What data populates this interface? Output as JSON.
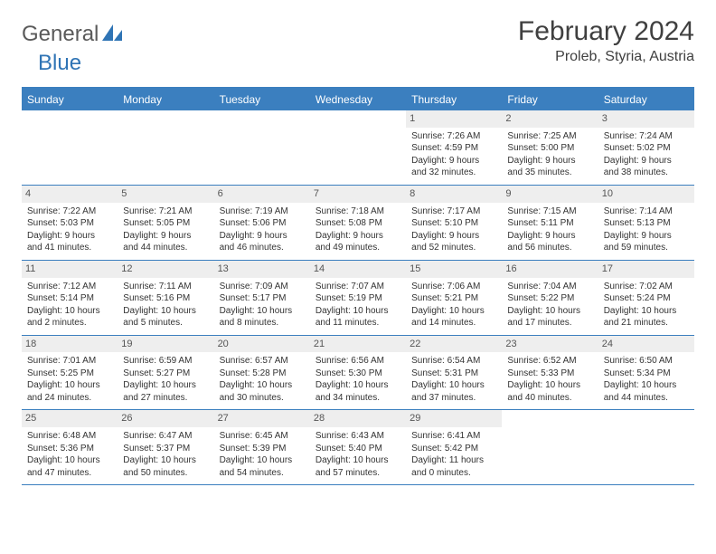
{
  "brand": {
    "part1": "General",
    "part2": "Blue"
  },
  "title": "February 2024",
  "subtitle": "Proleb, Styria, Austria",
  "colors": {
    "header_bg": "#3b7fbf",
    "header_text": "#ffffff",
    "daynum_bg": "#eeeeee",
    "body_text": "#333333",
    "logo_blue": "#2f74b5"
  },
  "weekdays": [
    "Sunday",
    "Monday",
    "Tuesday",
    "Wednesday",
    "Thursday",
    "Friday",
    "Saturday"
  ],
  "weeks": [
    [
      null,
      null,
      null,
      null,
      {
        "n": "1",
        "sr": "Sunrise: 7:26 AM",
        "ss": "Sunset: 4:59 PM",
        "d1": "Daylight: 9 hours",
        "d2": "and 32 minutes."
      },
      {
        "n": "2",
        "sr": "Sunrise: 7:25 AM",
        "ss": "Sunset: 5:00 PM",
        "d1": "Daylight: 9 hours",
        "d2": "and 35 minutes."
      },
      {
        "n": "3",
        "sr": "Sunrise: 7:24 AM",
        "ss": "Sunset: 5:02 PM",
        "d1": "Daylight: 9 hours",
        "d2": "and 38 minutes."
      }
    ],
    [
      {
        "n": "4",
        "sr": "Sunrise: 7:22 AM",
        "ss": "Sunset: 5:03 PM",
        "d1": "Daylight: 9 hours",
        "d2": "and 41 minutes."
      },
      {
        "n": "5",
        "sr": "Sunrise: 7:21 AM",
        "ss": "Sunset: 5:05 PM",
        "d1": "Daylight: 9 hours",
        "d2": "and 44 minutes."
      },
      {
        "n": "6",
        "sr": "Sunrise: 7:19 AM",
        "ss": "Sunset: 5:06 PM",
        "d1": "Daylight: 9 hours",
        "d2": "and 46 minutes."
      },
      {
        "n": "7",
        "sr": "Sunrise: 7:18 AM",
        "ss": "Sunset: 5:08 PM",
        "d1": "Daylight: 9 hours",
        "d2": "and 49 minutes."
      },
      {
        "n": "8",
        "sr": "Sunrise: 7:17 AM",
        "ss": "Sunset: 5:10 PM",
        "d1": "Daylight: 9 hours",
        "d2": "and 52 minutes."
      },
      {
        "n": "9",
        "sr": "Sunrise: 7:15 AM",
        "ss": "Sunset: 5:11 PM",
        "d1": "Daylight: 9 hours",
        "d2": "and 56 minutes."
      },
      {
        "n": "10",
        "sr": "Sunrise: 7:14 AM",
        "ss": "Sunset: 5:13 PM",
        "d1": "Daylight: 9 hours",
        "d2": "and 59 minutes."
      }
    ],
    [
      {
        "n": "11",
        "sr": "Sunrise: 7:12 AM",
        "ss": "Sunset: 5:14 PM",
        "d1": "Daylight: 10 hours",
        "d2": "and 2 minutes."
      },
      {
        "n": "12",
        "sr": "Sunrise: 7:11 AM",
        "ss": "Sunset: 5:16 PM",
        "d1": "Daylight: 10 hours",
        "d2": "and 5 minutes."
      },
      {
        "n": "13",
        "sr": "Sunrise: 7:09 AM",
        "ss": "Sunset: 5:17 PM",
        "d1": "Daylight: 10 hours",
        "d2": "and 8 minutes."
      },
      {
        "n": "14",
        "sr": "Sunrise: 7:07 AM",
        "ss": "Sunset: 5:19 PM",
        "d1": "Daylight: 10 hours",
        "d2": "and 11 minutes."
      },
      {
        "n": "15",
        "sr": "Sunrise: 7:06 AM",
        "ss": "Sunset: 5:21 PM",
        "d1": "Daylight: 10 hours",
        "d2": "and 14 minutes."
      },
      {
        "n": "16",
        "sr": "Sunrise: 7:04 AM",
        "ss": "Sunset: 5:22 PM",
        "d1": "Daylight: 10 hours",
        "d2": "and 17 minutes."
      },
      {
        "n": "17",
        "sr": "Sunrise: 7:02 AM",
        "ss": "Sunset: 5:24 PM",
        "d1": "Daylight: 10 hours",
        "d2": "and 21 minutes."
      }
    ],
    [
      {
        "n": "18",
        "sr": "Sunrise: 7:01 AM",
        "ss": "Sunset: 5:25 PM",
        "d1": "Daylight: 10 hours",
        "d2": "and 24 minutes."
      },
      {
        "n": "19",
        "sr": "Sunrise: 6:59 AM",
        "ss": "Sunset: 5:27 PM",
        "d1": "Daylight: 10 hours",
        "d2": "and 27 minutes."
      },
      {
        "n": "20",
        "sr": "Sunrise: 6:57 AM",
        "ss": "Sunset: 5:28 PM",
        "d1": "Daylight: 10 hours",
        "d2": "and 30 minutes."
      },
      {
        "n": "21",
        "sr": "Sunrise: 6:56 AM",
        "ss": "Sunset: 5:30 PM",
        "d1": "Daylight: 10 hours",
        "d2": "and 34 minutes."
      },
      {
        "n": "22",
        "sr": "Sunrise: 6:54 AM",
        "ss": "Sunset: 5:31 PM",
        "d1": "Daylight: 10 hours",
        "d2": "and 37 minutes."
      },
      {
        "n": "23",
        "sr": "Sunrise: 6:52 AM",
        "ss": "Sunset: 5:33 PM",
        "d1": "Daylight: 10 hours",
        "d2": "and 40 minutes."
      },
      {
        "n": "24",
        "sr": "Sunrise: 6:50 AM",
        "ss": "Sunset: 5:34 PM",
        "d1": "Daylight: 10 hours",
        "d2": "and 44 minutes."
      }
    ],
    [
      {
        "n": "25",
        "sr": "Sunrise: 6:48 AM",
        "ss": "Sunset: 5:36 PM",
        "d1": "Daylight: 10 hours",
        "d2": "and 47 minutes."
      },
      {
        "n": "26",
        "sr": "Sunrise: 6:47 AM",
        "ss": "Sunset: 5:37 PM",
        "d1": "Daylight: 10 hours",
        "d2": "and 50 minutes."
      },
      {
        "n": "27",
        "sr": "Sunrise: 6:45 AM",
        "ss": "Sunset: 5:39 PM",
        "d1": "Daylight: 10 hours",
        "d2": "and 54 minutes."
      },
      {
        "n": "28",
        "sr": "Sunrise: 6:43 AM",
        "ss": "Sunset: 5:40 PM",
        "d1": "Daylight: 10 hours",
        "d2": "and 57 minutes."
      },
      {
        "n": "29",
        "sr": "Sunrise: 6:41 AM",
        "ss": "Sunset: 5:42 PM",
        "d1": "Daylight: 11 hours",
        "d2": "and 0 minutes."
      },
      null,
      null
    ]
  ]
}
